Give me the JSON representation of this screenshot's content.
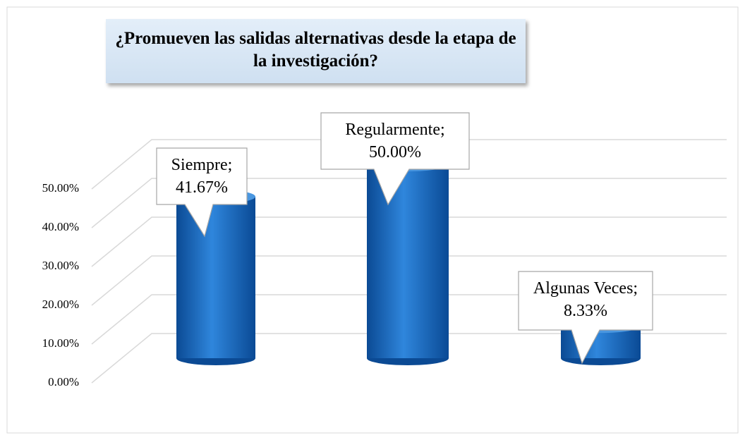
{
  "chart_data": {
    "type": "bar3d",
    "title": "¿Promueven las salidas alternativas desde la etapa de la investigación?",
    "categories": [
      "Siempre",
      "Regularmente",
      "Algunas Veces"
    ],
    "values": [
      41.67,
      50.0,
      8.33
    ],
    "value_labels": [
      "Siempre; 41.67%",
      "Regularmente; 50.00%",
      "Algunas Veces; 8.33%"
    ],
    "color": "#1565c0",
    "ylim": [
      0,
      50
    ],
    "yticks": [
      {
        "value": 0,
        "label": "0.00%"
      },
      {
        "value": 10,
        "label": "10.00%"
      },
      {
        "value": 20,
        "label": "20.00%"
      },
      {
        "value": 30,
        "label": "30.00%"
      },
      {
        "value": 40,
        "label": "40.00%"
      },
      {
        "value": 50,
        "label": "50.00%"
      }
    ],
    "grid": true
  }
}
